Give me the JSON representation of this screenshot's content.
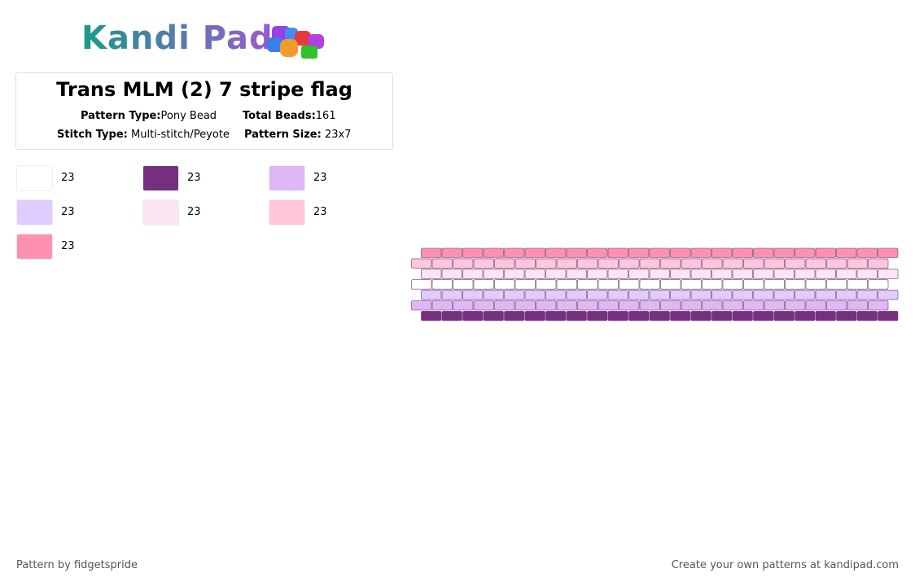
{
  "header": {
    "logo": "Kandi Pad",
    "title": "Trans MLM (2) 7 stripe flag",
    "pattern_type_label": "Pattern Type:",
    "pattern_type": "Pony Bead",
    "total_beads_label": "Total Beads:",
    "total_beads": "161",
    "stitch_type_label": "Stitch Type:",
    "stitch_type": "Multi-stitch/Peyote",
    "pattern_size_label": "Pattern Size:",
    "pattern_size": "23x7"
  },
  "palette": [
    {
      "color": "#ffffff",
      "count": 23
    },
    {
      "color": "#772f7f",
      "count": 23
    },
    {
      "color": "#dfb7f5",
      "count": 23
    },
    {
      "color": "#e0ccff",
      "count": 23
    },
    {
      "color": "#fde4f2",
      "count": 23
    },
    {
      "color": "#ffc6dc",
      "count": 23
    },
    {
      "color": "#ff91b0",
      "count": 23
    }
  ],
  "grid": {
    "columns": 23,
    "row_colors": [
      "#ff91b0",
      "#ffc6dc",
      "#fde4f2",
      "#ffffff",
      "#e0ccff",
      "#dfb7f5",
      "#772f7f"
    ]
  },
  "footer": {
    "credit": "Pattern by fidgetspride",
    "link": "Create your own patterns at kandipad.com"
  }
}
